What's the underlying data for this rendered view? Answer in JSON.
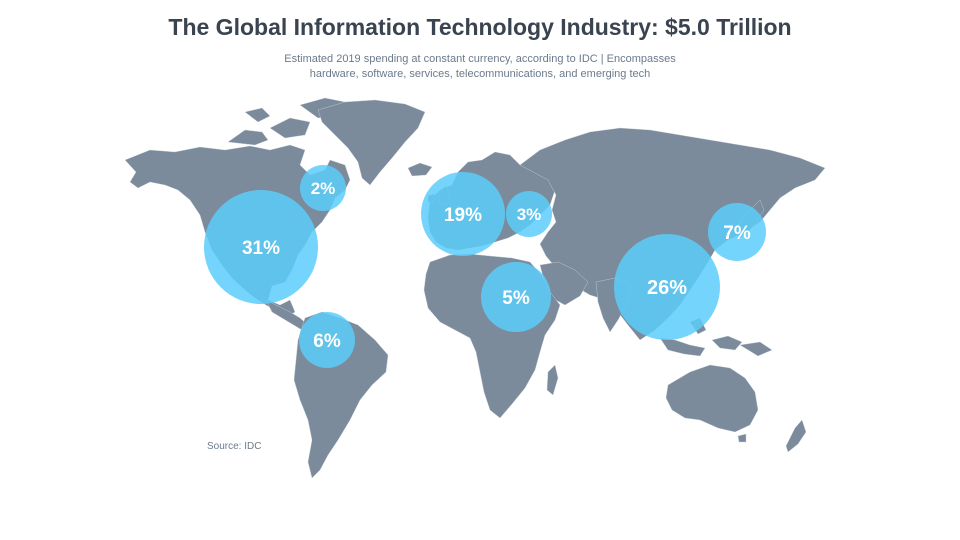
{
  "title": "The Global Information Technology Industry: $5.0 Trillion",
  "subtitle_line1": "Estimated 2019 spending at constant currency, according to IDC | Encompasses",
  "subtitle_line2": "hardware, software, services,  telecommunications, and emerging tech",
  "source": "Source: IDC",
  "colors": {
    "land": "#7b8b9b",
    "bubble": "#5ccdfa",
    "title": "#3a4350",
    "subtitle": "#6b7a8c"
  },
  "regions": [
    {
      "id": "canada",
      "label": "2%",
      "value": 2
    },
    {
      "id": "united-states",
      "label": "31%",
      "value": 31
    },
    {
      "id": "western-europe",
      "label": "19%",
      "value": 19
    },
    {
      "id": "central-eastern-europe",
      "label": "3%",
      "value": 3
    },
    {
      "id": "japan",
      "label": "7%",
      "value": 7
    },
    {
      "id": "middle-east-africa",
      "label": "5%",
      "value": 5
    },
    {
      "id": "asia-pacific",
      "label": "26%",
      "value": 26
    },
    {
      "id": "latin-america",
      "label": "6%",
      "value": 6
    }
  ]
}
